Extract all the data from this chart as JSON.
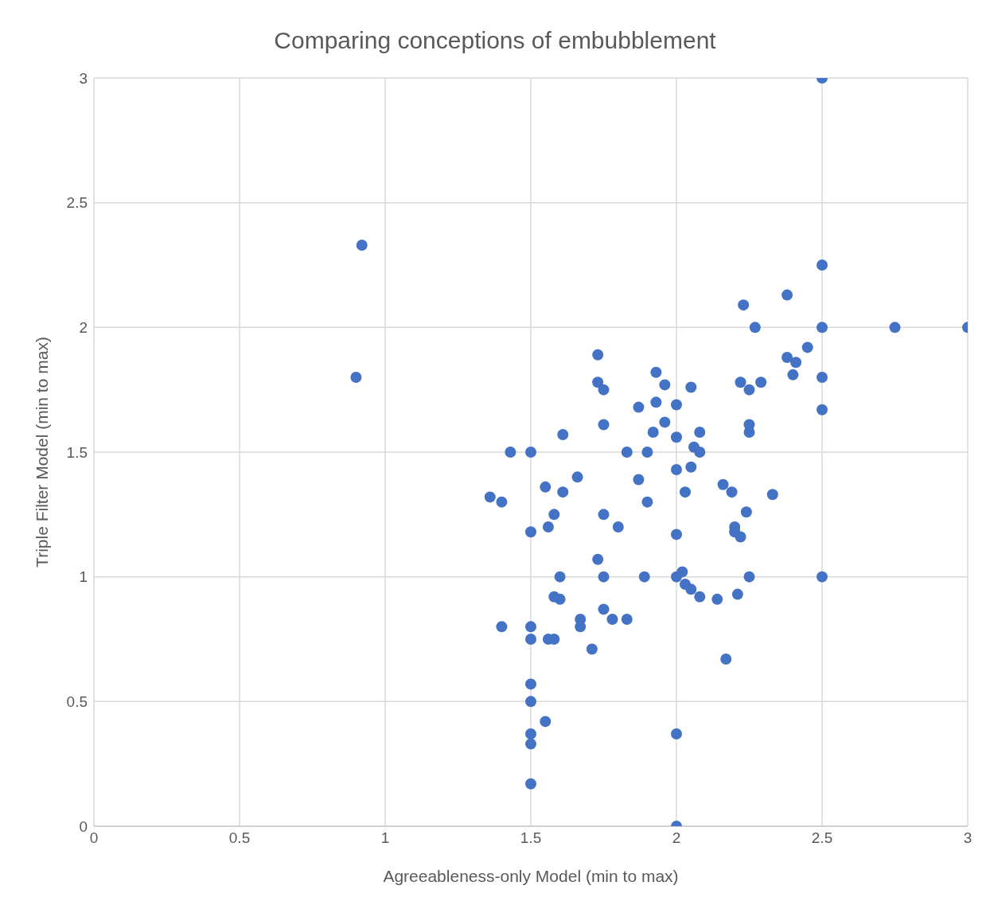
{
  "chart_data": {
    "type": "scatter",
    "title": "Comparing conceptions of embubblement",
    "xlabel": "Agreeableness-only Model (min to max)",
    "ylabel": "Triple Filter Model (min to max)",
    "xlim": [
      0,
      3
    ],
    "xticks": [
      0,
      0.5,
      1,
      1.5,
      2,
      2.5,
      3
    ],
    "ylim": [
      0,
      3
    ],
    "yticks": [
      0,
      0.5,
      1,
      1.5,
      2,
      2.5,
      3
    ],
    "grid": true,
    "marker": "circle",
    "series": [
      {
        "color": "#4472c4",
        "x": [
          2.5,
          0.92,
          0.9,
          2.5,
          2.23,
          2.38,
          2.27,
          2.5,
          2.75,
          3,
          2.45,
          2.38,
          2.41,
          2.4,
          2.5,
          2.22,
          2.29,
          2.25,
          2.5,
          2.25,
          2.25,
          2.33,
          2.5,
          1.73,
          1.73,
          1.75,
          1.93,
          1.96,
          2.05,
          1.93,
          2.0,
          1.87,
          1.75,
          1.96,
          1.92,
          2.08,
          1.61,
          2.0,
          2.06,
          2.08,
          1.83,
          1.9,
          1.43,
          1.5,
          2.0,
          2.05,
          1.66,
          1.87,
          1.55,
          1.61,
          2.03,
          2.16,
          2.19,
          1.36,
          1.4,
          1.9,
          2.24,
          1.58,
          1.75,
          1.56,
          1.8,
          2.2,
          2.2,
          2.22,
          1.5,
          2.0,
          1.73,
          2.02,
          1.6,
          1.75,
          1.89,
          2.0,
          2.25,
          2.03,
          2.05,
          2.08,
          2.14,
          2.21,
          1.58,
          1.6,
          1.75,
          1.67,
          1.78,
          1.83,
          1.67,
          1.4,
          1.5,
          1.5,
          1.56,
          1.58,
          1.71,
          2.17,
          1.5,
          1.5,
          1.55,
          1.5,
          1.5,
          2.0,
          1.5,
          2.0
        ],
        "values": [
          3,
          2.33,
          1.8,
          2.25,
          2.09,
          2.13,
          2.0,
          2.0,
          2.0,
          2.0,
          1.92,
          1.88,
          1.86,
          1.81,
          1.8,
          1.78,
          1.78,
          1.75,
          1.67,
          1.61,
          1.58,
          1.33,
          1.0,
          1.89,
          1.78,
          1.75,
          1.82,
          1.77,
          1.76,
          1.7,
          1.69,
          1.68,
          1.61,
          1.62,
          1.58,
          1.58,
          1.57,
          1.56,
          1.52,
          1.5,
          1.5,
          1.5,
          1.5,
          1.5,
          1.43,
          1.44,
          1.4,
          1.39,
          1.36,
          1.34,
          1.34,
          1.37,
          1.34,
          1.32,
          1.3,
          1.3,
          1.26,
          1.25,
          1.25,
          1.2,
          1.2,
          1.2,
          1.18,
          1.16,
          1.18,
          1.17,
          1.07,
          1.02,
          1.0,
          1.0,
          1.0,
          1.0,
          1.0,
          0.97,
          0.95,
          0.92,
          0.91,
          0.93,
          0.92,
          0.91,
          0.87,
          0.83,
          0.83,
          0.83,
          0.8,
          0.8,
          0.8,
          0.75,
          0.75,
          0.75,
          0.71,
          0.67,
          0.57,
          0.5,
          0.42,
          0.37,
          0.33,
          0.37,
          0.17,
          0
        ]
      }
    ]
  }
}
